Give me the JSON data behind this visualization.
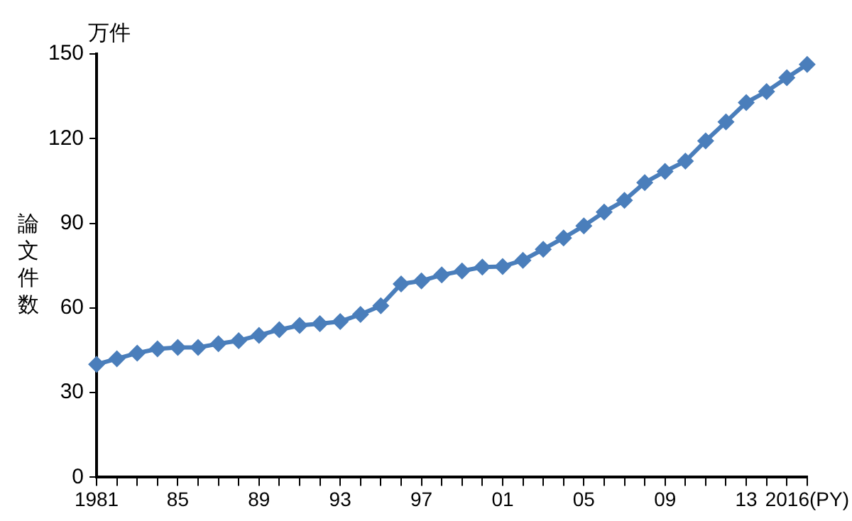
{
  "chart_data": {
    "type": "line",
    "ylabel": "論文件数",
    "annotations": [
      "万件"
    ],
    "categories": [
      "1981",
      null,
      null,
      null,
      "85",
      null,
      null,
      null,
      "89",
      null,
      null,
      null,
      "93",
      null,
      null,
      null,
      "97",
      null,
      null,
      null,
      "01",
      null,
      null,
      null,
      "05",
      null,
      null,
      null,
      "09",
      null,
      null,
      null,
      "13",
      null,
      null,
      "2016(PY)"
    ],
    "series": [
      {
        "color": "#4a7ebb",
        "values": [
          40,
          42,
          44,
          45.5,
          46,
          46,
          47.3,
          48.4,
          50.3,
          52.3,
          53.8,
          54.4,
          55.2,
          57.7,
          60.8,
          68.5,
          69.6,
          71.7,
          73.1,
          74.5,
          74.7,
          76.9,
          80.8,
          84.8,
          89.1,
          94,
          98.1,
          104.4,
          108.4,
          112,
          119.2,
          125.9,
          132.8,
          136.7,
          141.6,
          146.3
        ]
      }
    ],
    "ylim": [
      0,
      150
    ],
    "yticks": [
      0,
      30,
      60,
      90,
      120,
      150
    ],
    "grid": false,
    "legend": false,
    "marker": "diamond",
    "line_style": "solid"
  }
}
